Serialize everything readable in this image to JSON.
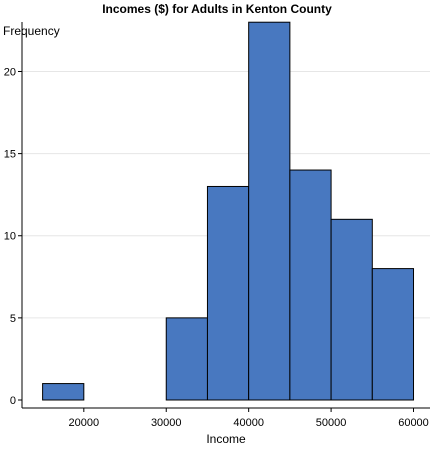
{
  "chart_data": {
    "type": "bar",
    "title": "Incomes ($) for Adults in Kenton County",
    "xlabel": "Income",
    "ylabel": "Frequency",
    "bins": [
      {
        "start": 15000,
        "end": 20000,
        "count": 1
      },
      {
        "start": 20000,
        "end": 25000,
        "count": 0
      },
      {
        "start": 25000,
        "end": 30000,
        "count": 0
      },
      {
        "start": 30000,
        "end": 35000,
        "count": 5
      },
      {
        "start": 35000,
        "end": 40000,
        "count": 13
      },
      {
        "start": 40000,
        "end": 45000,
        "count": 23
      },
      {
        "start": 45000,
        "end": 50000,
        "count": 14
      },
      {
        "start": 50000,
        "end": 55000,
        "count": 11
      },
      {
        "start": 55000,
        "end": 60000,
        "count": 8
      }
    ],
    "xticks": [
      20000,
      30000,
      40000,
      50000,
      60000
    ],
    "yticks": [
      0,
      5,
      10,
      15,
      20
    ],
    "xlim": [
      12500,
      62000
    ],
    "ylim": [
      0,
      23.5
    ],
    "grid": "horizontal",
    "bar_color": "#4878c0",
    "legend": "none"
  }
}
